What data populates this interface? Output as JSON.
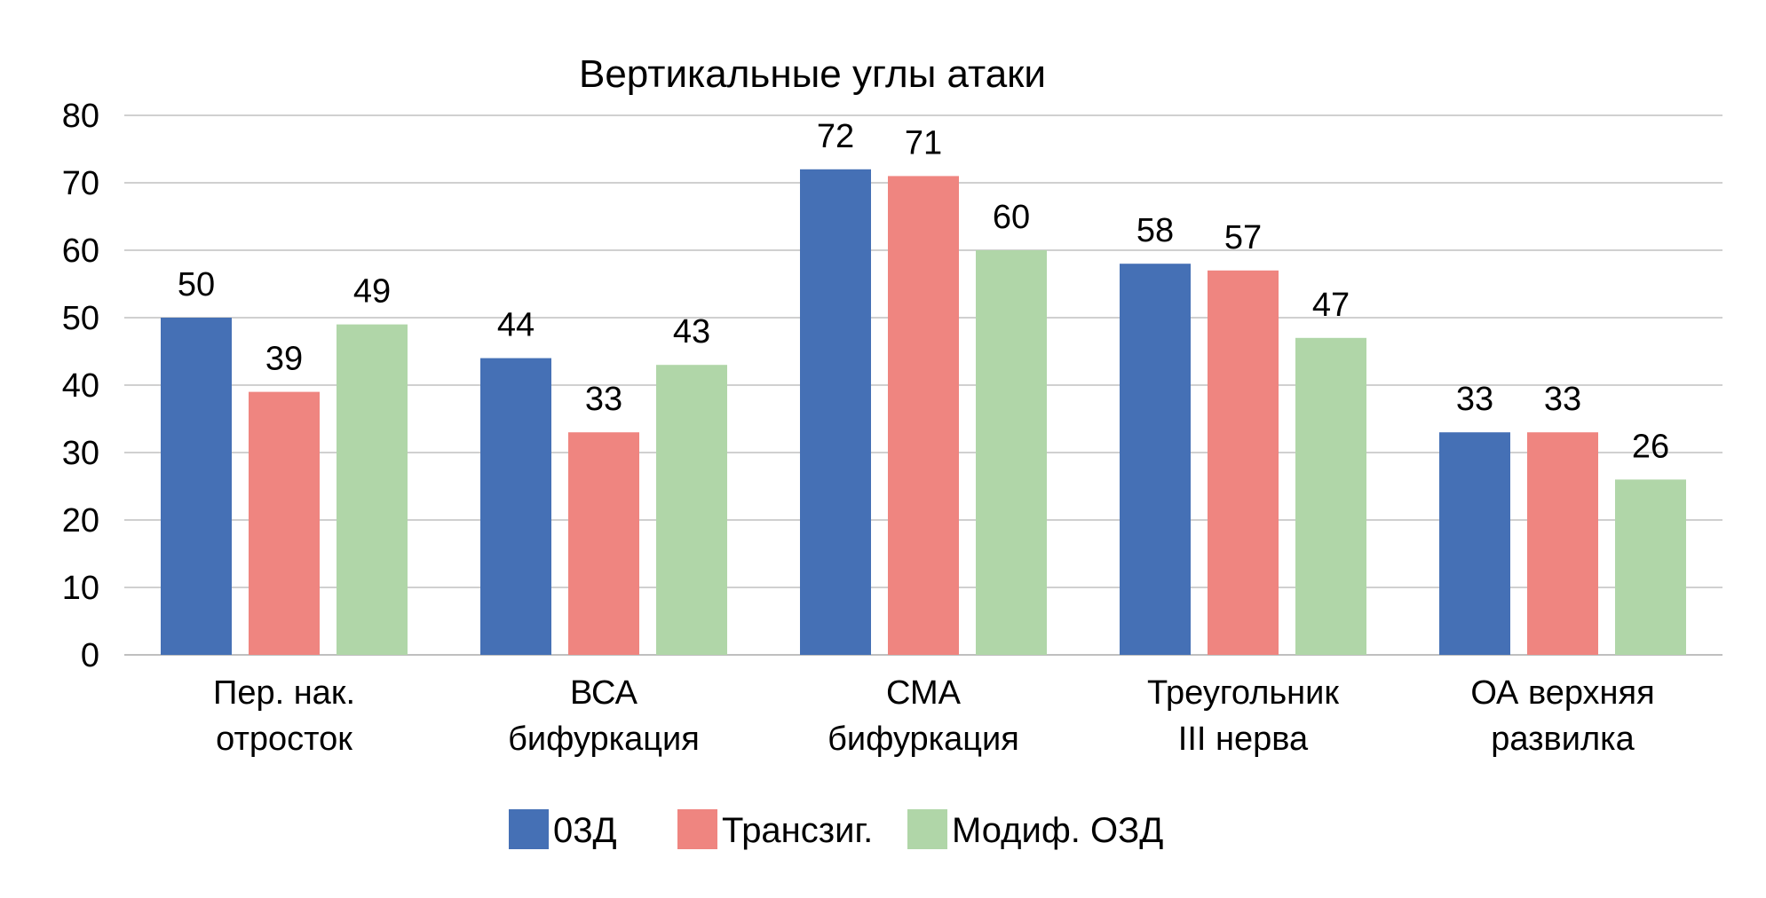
{
  "chart_data": {
    "type": "bar",
    "title": "Вертикальные углы атаки",
    "categories": [
      [
        "Пер. нак.",
        "отросток"
      ],
      [
        "ВСА",
        "бифуркация"
      ],
      [
        "СМА",
        "бифуркация"
      ],
      [
        "Треугольник",
        "III нерва"
      ],
      [
        "ОА верхняя",
        "развилка"
      ]
    ],
    "series": [
      {
        "name": "03Д",
        "color": "#4570b5",
        "values": [
          50,
          44,
          72,
          58,
          33
        ]
      },
      {
        "name": "Трансзиг.",
        "color": "#ef8580",
        "values": [
          39,
          33,
          71,
          57,
          33
        ]
      },
      {
        "name": "Модиф. ОЗД",
        "color": "#b0d6a8",
        "values": [
          49,
          43,
          60,
          47,
          26
        ]
      }
    ],
    "ylim": [
      0,
      80
    ],
    "yticks": [
      0,
      10,
      20,
      30,
      40,
      50,
      60,
      70,
      80
    ],
    "grid": true,
    "legend_position": "bottom",
    "data_labels": true
  }
}
